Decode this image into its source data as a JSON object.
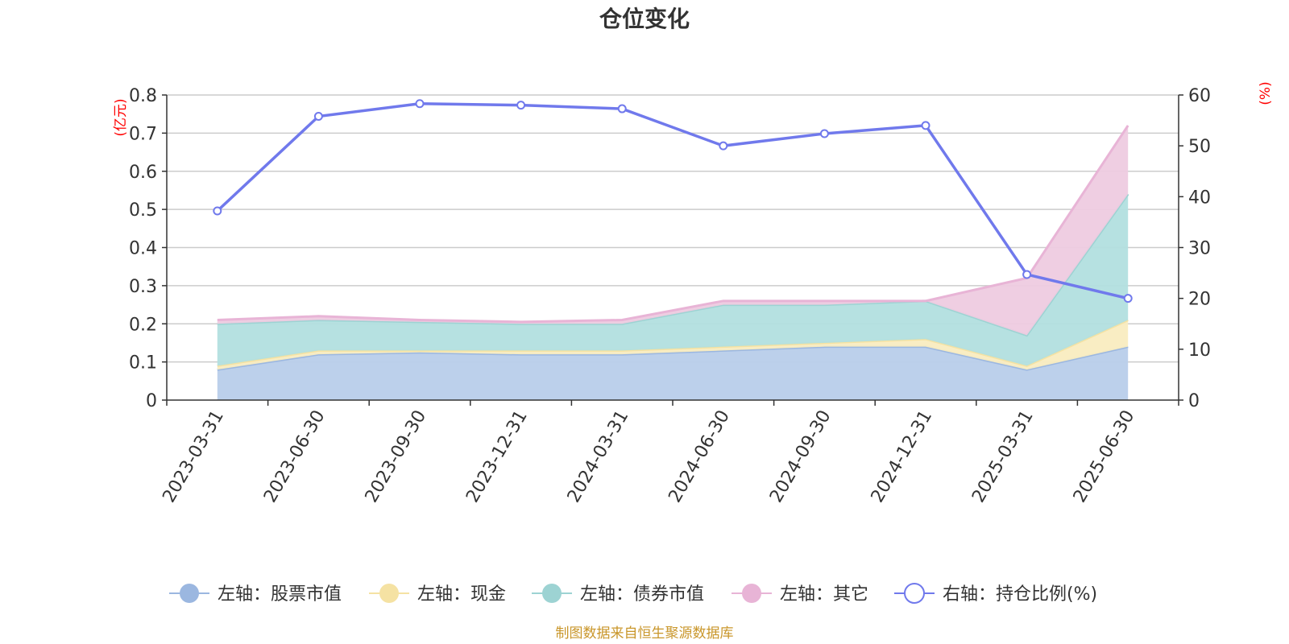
{
  "chart_data": {
    "type": "area",
    "title": "仓位变化",
    "categories": [
      "2023-03-31",
      "2023-06-30",
      "2023-09-30",
      "2023-12-31",
      "2024-03-31",
      "2024-06-30",
      "2024-09-30",
      "2024-12-31",
      "2025-03-31",
      "2025-06-30"
    ],
    "left_axis": {
      "unit": "(亿元)",
      "ylim": [
        0,
        0.8
      ],
      "ticks": [
        "0",
        "0.1",
        "0.2",
        "0.3",
        "0.4",
        "0.5",
        "0.6",
        "0.7",
        "0.8"
      ]
    },
    "right_axis": {
      "unit": "(%)",
      "ylim": [
        0,
        60
      ],
      "ticks": [
        "0",
        "10",
        "20",
        "30",
        "40",
        "50",
        "60"
      ]
    },
    "stacked": true,
    "grid": true,
    "legend_position": "bottom",
    "series": [
      {
        "name": "左轴：股票市值",
        "axis": "left",
        "kind": "area",
        "color": "#9bb7e0",
        "fill": "#b8cdea",
        "values": [
          0.08,
          0.12,
          0.125,
          0.12,
          0.12,
          0.13,
          0.14,
          0.14,
          0.08,
          0.14
        ]
      },
      {
        "name": "左轴：现金",
        "axis": "left",
        "kind": "area",
        "color": "#f5e2a3",
        "fill": "#f9ecc0",
        "values": [
          0.01,
          0.01,
          0.005,
          0.01,
          0.01,
          0.01,
          0.01,
          0.02,
          0.01,
          0.07
        ]
      },
      {
        "name": "左轴：债券市值",
        "axis": "left",
        "kind": "area",
        "color": "#9dd3d3",
        "fill": "#b2dfdf",
        "values": [
          0.11,
          0.08,
          0.075,
          0.07,
          0.07,
          0.11,
          0.1,
          0.1,
          0.08,
          0.33
        ]
      },
      {
        "name": "左轴：其它",
        "axis": "left",
        "kind": "area",
        "color": "#e8b4d6",
        "fill": "#eecbe0",
        "values": [
          0.01,
          0.01,
          0.005,
          0.005,
          0.01,
          0.01,
          0.01,
          0.0,
          0.15,
          0.18
        ]
      },
      {
        "name": "右轴：持仓比例(%)",
        "axis": "right",
        "kind": "line",
        "color": "#7079ec",
        "values": [
          37.2,
          55.8,
          58.3,
          58.0,
          57.3,
          50.0,
          52.4,
          54.0,
          24.7,
          20.0
        ]
      }
    ]
  },
  "footer": "制图数据来自恒生聚源数据库"
}
